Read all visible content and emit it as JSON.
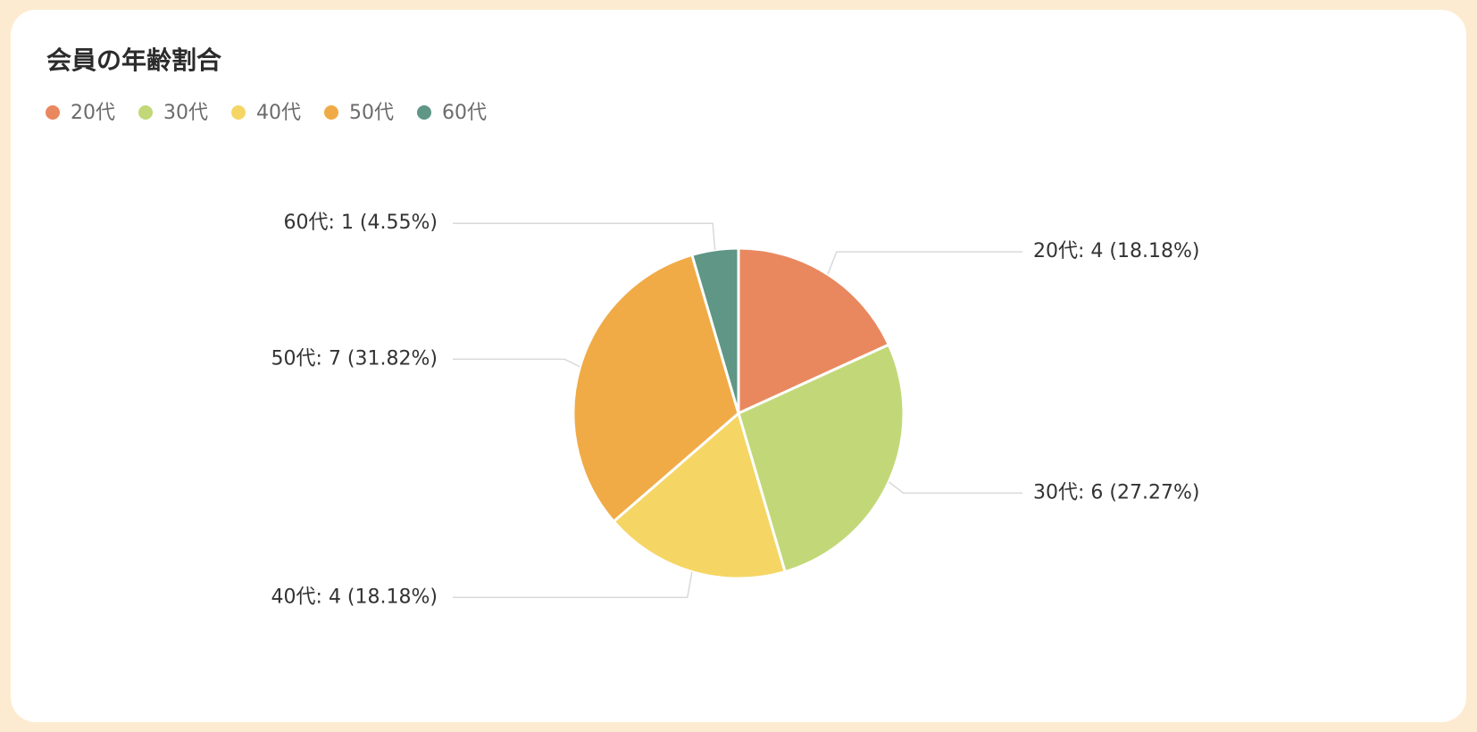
{
  "chart_data": {
    "type": "pie",
    "title": "会員の年齢割合",
    "categories": [
      "20代",
      "30代",
      "40代",
      "50代",
      "60代"
    ],
    "values": [
      4,
      6,
      4,
      7,
      1
    ],
    "value_labels": [
      "20代: 4 (18.18%)",
      "30代: 6 (27.27%)",
      "40代: 4 (18.18%)",
      "50代: 7 (31.82%)",
      "60代: 1 (4.55%)"
    ],
    "colors": [
      "#e9885f",
      "#c2d878",
      "#f5d664",
      "#f0ab47",
      "#5f9686"
    ]
  }
}
